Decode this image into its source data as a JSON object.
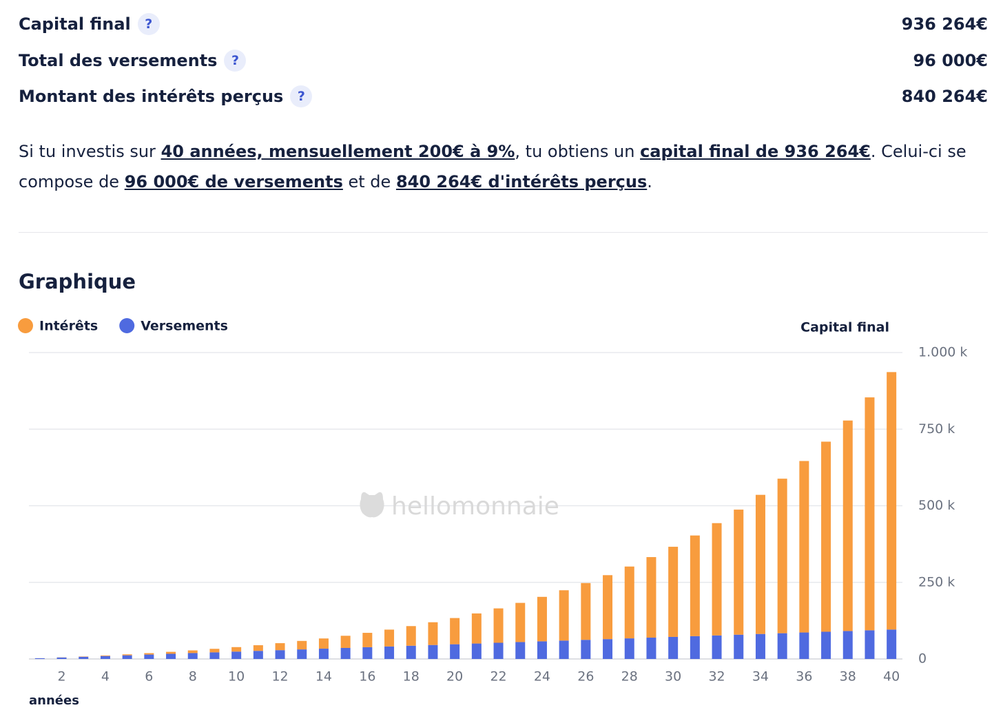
{
  "summary": {
    "rows": [
      {
        "label": "Capital final",
        "help": "?",
        "value": "936 264€"
      },
      {
        "label": "Total des versements",
        "help": "?",
        "value": "96 000€"
      },
      {
        "label": "Montant des intérêts perçus",
        "help": "?",
        "value": "840 264€"
      }
    ]
  },
  "paragraph": {
    "parts": [
      {
        "text": "Si tu investis sur "
      },
      {
        "text": "40 années, mensuellement 200€ à 9%",
        "link": true
      },
      {
        "text": ", tu obtiens un "
      },
      {
        "text": "capital final de 936 264€",
        "link": true
      },
      {
        "text": ". Celui-ci se compose de "
      },
      {
        "text": "96 000€ de versements",
        "link": true
      },
      {
        "text": " et de "
      },
      {
        "text": "840 264€ d'intérêts perçus",
        "link": true
      },
      {
        "text": "."
      }
    ]
  },
  "section": {
    "title": "Graphique"
  },
  "watermark": "hellomonnaie",
  "chart_data": {
    "type": "stacked_bar",
    "ylabel": "Capital final",
    "xlabel": "années",
    "x": [
      1,
      2,
      3,
      4,
      5,
      6,
      7,
      8,
      9,
      10,
      11,
      12,
      13,
      14,
      15,
      16,
      17,
      18,
      19,
      20,
      21,
      22,
      23,
      24,
      25,
      26,
      27,
      28,
      29,
      30,
      31,
      32,
      33,
      34,
      35,
      36,
      37,
      38,
      39,
      40
    ],
    "xlim": [
      0.5,
      40.5
    ],
    "xticks": [
      2,
      4,
      6,
      8,
      10,
      12,
      14,
      16,
      18,
      20,
      22,
      24,
      26,
      28,
      30,
      32,
      34,
      36,
      38,
      40
    ],
    "ylim": [
      0,
      1000000
    ],
    "yticks": [
      0,
      {
        "value": 250000,
        "label": "250 k"
      },
      {
        "value": 500000,
        "label": "500 k"
      },
      {
        "value": 750000,
        "label": "750 k"
      },
      {
        "value": 1000000,
        "label": "1.000 k"
      }
    ],
    "grid": true,
    "series": [
      {
        "name": "Intérêts",
        "color": "#f89c3e",
        "values": [
          102,
          438,
          1031,
          1904,
          3085,
          4601,
          6485,
          8771,
          11497,
          14703,
          18435,
          22742,
          27679,
          33304,
          39681,
          46882,
          54984,
          64071,
          74235,
          85578,
          98210,
          112252,
          127837,
          145109,
          164225,
          185361,
          208704,
          234463,
          262862,
          294151,
          328601,
          366507,
          408194,
          454017,
          504363,
          559658,
          620365,
          686991,
          760093,
          840264
        ]
      },
      {
        "name": "Versements",
        "color": "#4f6ae0",
        "values": [
          2400,
          4800,
          7200,
          9600,
          12000,
          14400,
          16800,
          19200,
          21600,
          24000,
          26400,
          28800,
          31200,
          33600,
          36000,
          38400,
          40800,
          43200,
          45600,
          48000,
          50400,
          52800,
          55200,
          57600,
          60000,
          62400,
          64800,
          67200,
          69600,
          72000,
          74400,
          76800,
          79200,
          81600,
          84000,
          86400,
          88800,
          91200,
          93600,
          96000
        ]
      }
    ]
  }
}
